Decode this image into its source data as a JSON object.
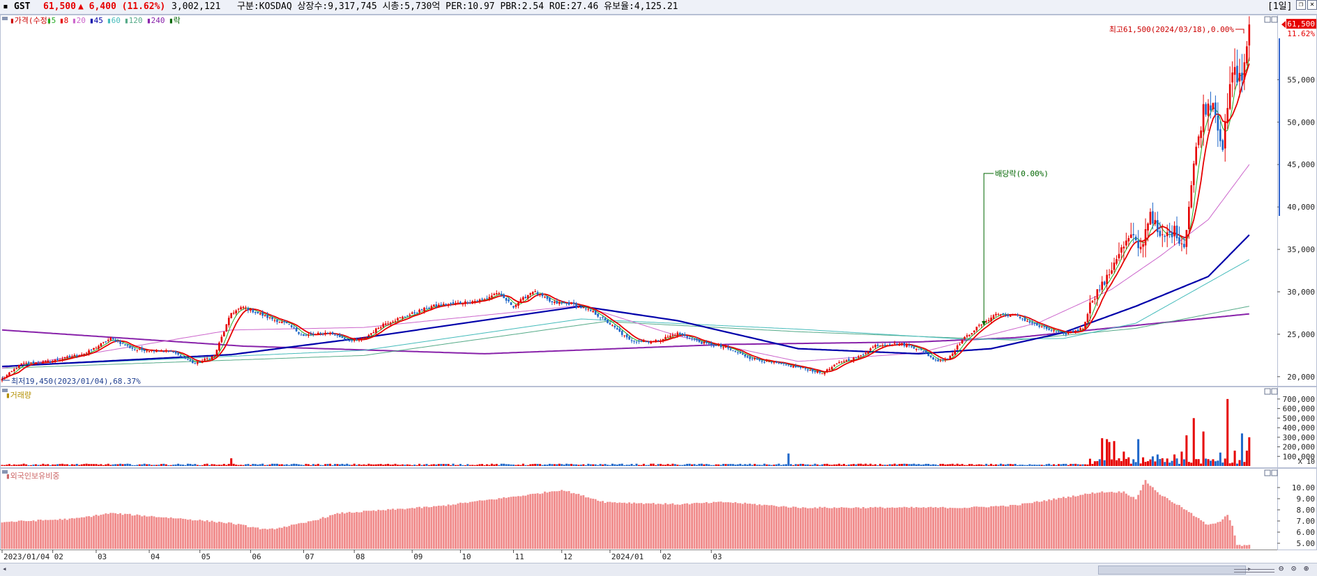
{
  "header": {
    "code": "GST",
    "price": "61,500",
    "change": "▲ 6,400 (11.62%)",
    "volume": "3,002,121",
    "info": "구분:KOSDAQ 상장수:9,317,745 시총:5,730억 PER:10.97 PBR:2.54 ROE:27.46 유보율:4,125.21",
    "period_button": "[1일]",
    "price_color": "#e60000"
  },
  "panels": {
    "price": {
      "legend": [
        {
          "text": "▮가격(수정)",
          "color": "#cc0000"
        },
        {
          "text": "▮5",
          "color": "#22aa22"
        },
        {
          "text": "▮8",
          "color": "#e60000"
        },
        {
          "text": "▮20",
          "color": "#cc66cc"
        },
        {
          "text": "▮45",
          "color": "#0000aa"
        },
        {
          "text": "▮60",
          "color": "#44bbbb"
        },
        {
          "text": "▮120",
          "color": "#55aa88"
        },
        {
          "text": "▮240",
          "color": "#8822aa"
        },
        {
          "text": "▮락",
          "color": "#006600"
        }
      ],
      "y_labels": [
        "55,000",
        "50,000",
        "45,000",
        "40,000",
        "35,000",
        "30,000",
        "25,000",
        "20,000"
      ],
      "current_price_label": "61,500",
      "current_pct_label": "11.62%",
      "high_note": "최고61,500(2024/03/18),0.00%",
      "low_note": "최저19,450(2023/01/04),68.37%",
      "dividend_note": "배당락(0.00%)"
    },
    "volume": {
      "title": "▮거래량",
      "y_labels": [
        "700,000",
        "600,000",
        "500,000",
        "400,000",
        "300,000",
        "200,000",
        "100,000"
      ],
      "unit": "X 10"
    },
    "foreign": {
      "title": "▮외국인보유비중",
      "y_labels": [
        "10.00",
        "9.00",
        "8.00",
        "7.00",
        "6.00",
        "5.00"
      ]
    }
  },
  "x_labels": [
    "2023/01/04",
    "02",
    "03",
    "04",
    "05",
    "06",
    "07",
    "08",
    "09",
    "10",
    "11",
    "12",
    "2024/01",
    "02",
    "03"
  ],
  "chart_data": {
    "type": "candlestick",
    "price_range": [
      19000,
      62500
    ],
    "months": [
      "2023-01",
      "2023-02",
      "2023-03",
      "2023-04",
      "2023-05",
      "2023-06",
      "2023-07",
      "2023-08",
      "2023-09",
      "2023-10",
      "2023-11",
      "2023-12",
      "2024-01",
      "2024-02",
      "2024-03"
    ],
    "close_path": [
      [
        0,
        19700
      ],
      [
        8,
        21500
      ],
      [
        20,
        21800
      ],
      [
        35,
        22800
      ],
      [
        45,
        24500
      ],
      [
        55,
        23200
      ],
      [
        70,
        23000
      ],
      [
        80,
        21500
      ],
      [
        88,
        22500
      ],
      [
        95,
        27500
      ],
      [
        100,
        28200
      ],
      [
        110,
        27000
      ],
      [
        118,
        26200
      ],
      [
        125,
        24800
      ],
      [
        135,
        25200
      ],
      [
        145,
        24200
      ],
      [
        150,
        24500
      ],
      [
        158,
        26200
      ],
      [
        168,
        27200
      ],
      [
        178,
        28300
      ],
      [
        190,
        28700
      ],
      [
        200,
        29100
      ],
      [
        205,
        29900
      ],
      [
        212,
        28300
      ],
      [
        220,
        30100
      ],
      [
        228,
        28700
      ],
      [
        236,
        28600
      ],
      [
        245,
        27600
      ],
      [
        252,
        26200
      ],
      [
        260,
        24300
      ],
      [
        270,
        24100
      ],
      [
        280,
        25100
      ],
      [
        290,
        24000
      ],
      [
        300,
        23400
      ],
      [
        310,
        22200
      ],
      [
        320,
        21600
      ],
      [
        332,
        21000
      ],
      [
        340,
        20400
      ],
      [
        348,
        21800
      ],
      [
        355,
        22300
      ],
      [
        362,
        23700
      ],
      [
        372,
        23900
      ],
      [
        380,
        23300
      ],
      [
        387,
        21900
      ],
      [
        392,
        22100
      ],
      [
        398,
        24300
      ],
      [
        405,
        26000
      ],
      [
        412,
        27400
      ],
      [
        420,
        27200
      ],
      [
        430,
        25900
      ],
      [
        440,
        25000
      ],
      [
        448,
        25700
      ],
      [
        452,
        29300
      ],
      [
        458,
        31500
      ],
      [
        462,
        34200
      ],
      [
        468,
        36500
      ],
      [
        472,
        35000
      ],
      [
        476,
        39500
      ],
      [
        480,
        36200
      ],
      [
        486,
        37200
      ],
      [
        490,
        35400
      ],
      [
        494,
        45000
      ],
      [
        498,
        51500
      ],
      [
        502,
        52500
      ],
      [
        506,
        47000
      ],
      [
        510,
        56000
      ],
      [
        514,
        55000
      ],
      [
        517,
        61500
      ]
    ],
    "ma240_path": [
      [
        0,
        25500
      ],
      [
        100,
        23600
      ],
      [
        200,
        22700
      ],
      [
        300,
        23800
      ],
      [
        380,
        24100
      ],
      [
        420,
        24600
      ],
      [
        517,
        27400
      ]
    ],
    "ma120_path": [
      [
        0,
        21000
      ],
      [
        150,
        22500
      ],
      [
        250,
        26500
      ],
      [
        330,
        25300
      ],
      [
        420,
        24300
      ],
      [
        470,
        25700
      ],
      [
        517,
        28300
      ]
    ],
    "ma60_path": [
      [
        0,
        21200
      ],
      [
        150,
        23100
      ],
      [
        240,
        26800
      ],
      [
        330,
        25600
      ],
      [
        400,
        24400
      ],
      [
        440,
        24500
      ],
      [
        470,
        26300
      ],
      [
        517,
        33800
      ]
    ],
    "ma45_path": [
      [
        0,
        21200
      ],
      [
        95,
        22600
      ],
      [
        150,
        24600
      ],
      [
        240,
        28300
      ],
      [
        280,
        26600
      ],
      [
        330,
        23300
      ],
      [
        380,
        22700
      ],
      [
        410,
        23300
      ],
      [
        440,
        25200
      ],
      [
        470,
        28300
      ],
      [
        500,
        31800
      ],
      [
        517,
        36700
      ]
    ],
    "ma20_path": [
      [
        0,
        21000
      ],
      [
        95,
        25500
      ],
      [
        150,
        25800
      ],
      [
        240,
        28400
      ],
      [
        280,
        24800
      ],
      [
        330,
        21800
      ],
      [
        380,
        22800
      ],
      [
        430,
        26400
      ],
      [
        460,
        30300
      ],
      [
        480,
        34200
      ],
      [
        500,
        38500
      ],
      [
        517,
        45000
      ]
    ],
    "volume_max": 750000,
    "foreign_range": [
      4.5,
      11.0
    ],
    "high": {
      "value": 61500,
      "date": "2024/03/18"
    },
    "low": {
      "value": 19450,
      "date": "2023/01/04"
    },
    "last_close": 61500,
    "change": 6400,
    "change_pct": 11.62
  }
}
